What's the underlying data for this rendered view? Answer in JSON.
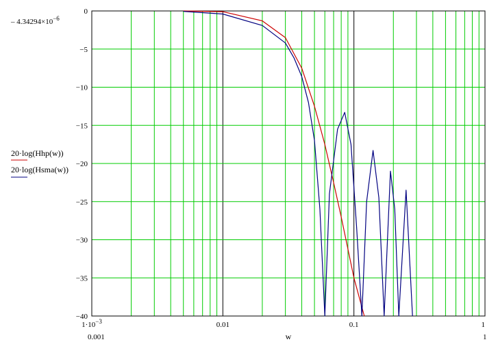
{
  "chart_data": {
    "type": "line",
    "xscale": "log",
    "xlim": [
      0.001,
      1
    ],
    "ylim": [
      -40,
      0
    ],
    "grid": true,
    "xlabel": "w",
    "ylabel_top_marker": "– 4.34294×10",
    "ylabel_top_marker_exp": "−6",
    "x_tick_labels": [
      {
        "value": 0.001,
        "label": "1·10",
        "exp": "−3"
      },
      {
        "value": 0.01,
        "label": "0.01"
      },
      {
        "value": 0.1,
        "label": "0.1"
      },
      {
        "value": 1,
        "label": "1"
      }
    ],
    "x_range_labels": {
      "min": "0.001",
      "max": "1"
    },
    "y_tick_labels": [
      {
        "value": 0,
        "label": "0"
      },
      {
        "value": -5,
        "label": "−5"
      },
      {
        "value": -10,
        "label": "−10"
      },
      {
        "value": -15,
        "label": "−15"
      },
      {
        "value": -20,
        "label": "−20"
      },
      {
        "value": -25,
        "label": "−25"
      },
      {
        "value": -30,
        "label": "−30"
      },
      {
        "value": -35,
        "label": "−35"
      },
      {
        "value": -40,
        "label": "−40"
      }
    ],
    "series": [
      {
        "name": "20·log(Hhp(w))",
        "color": "#cc0000",
        "x": [
          0.005,
          0.01,
          0.02,
          0.03,
          0.04,
          0.05,
          0.06,
          0.07,
          0.08,
          0.1,
          0.12
        ],
        "values": [
          0,
          -0.1,
          -1.3,
          -3.5,
          -7.5,
          -12.5,
          -17.5,
          -22.5,
          -27,
          -35,
          -40
        ]
      },
      {
        "name": "20·log(Hsma(w))",
        "color": "#000080",
        "x": [
          0.005,
          0.01,
          0.02,
          0.03,
          0.035,
          0.04,
          0.045,
          0.05,
          0.055,
          0.06,
          0.065,
          0.075,
          0.085,
          0.095,
          0.105,
          0.115,
          0.125,
          0.14,
          0.155,
          0.17,
          0.19,
          0.205,
          0.22,
          0.25,
          0.28
        ],
        "values": [
          -0.05,
          -0.4,
          -1.9,
          -4.2,
          -6.2,
          -8.6,
          -12.0,
          -17.0,
          -26.0,
          -40,
          -24.0,
          -15.5,
          -13.3,
          -17.5,
          -28.5,
          -40,
          -25.0,
          -18.3,
          -24.5,
          -40,
          -21.0,
          -26.0,
          -40,
          -23.5,
          -40
        ]
      }
    ],
    "legend_placement": "left"
  }
}
